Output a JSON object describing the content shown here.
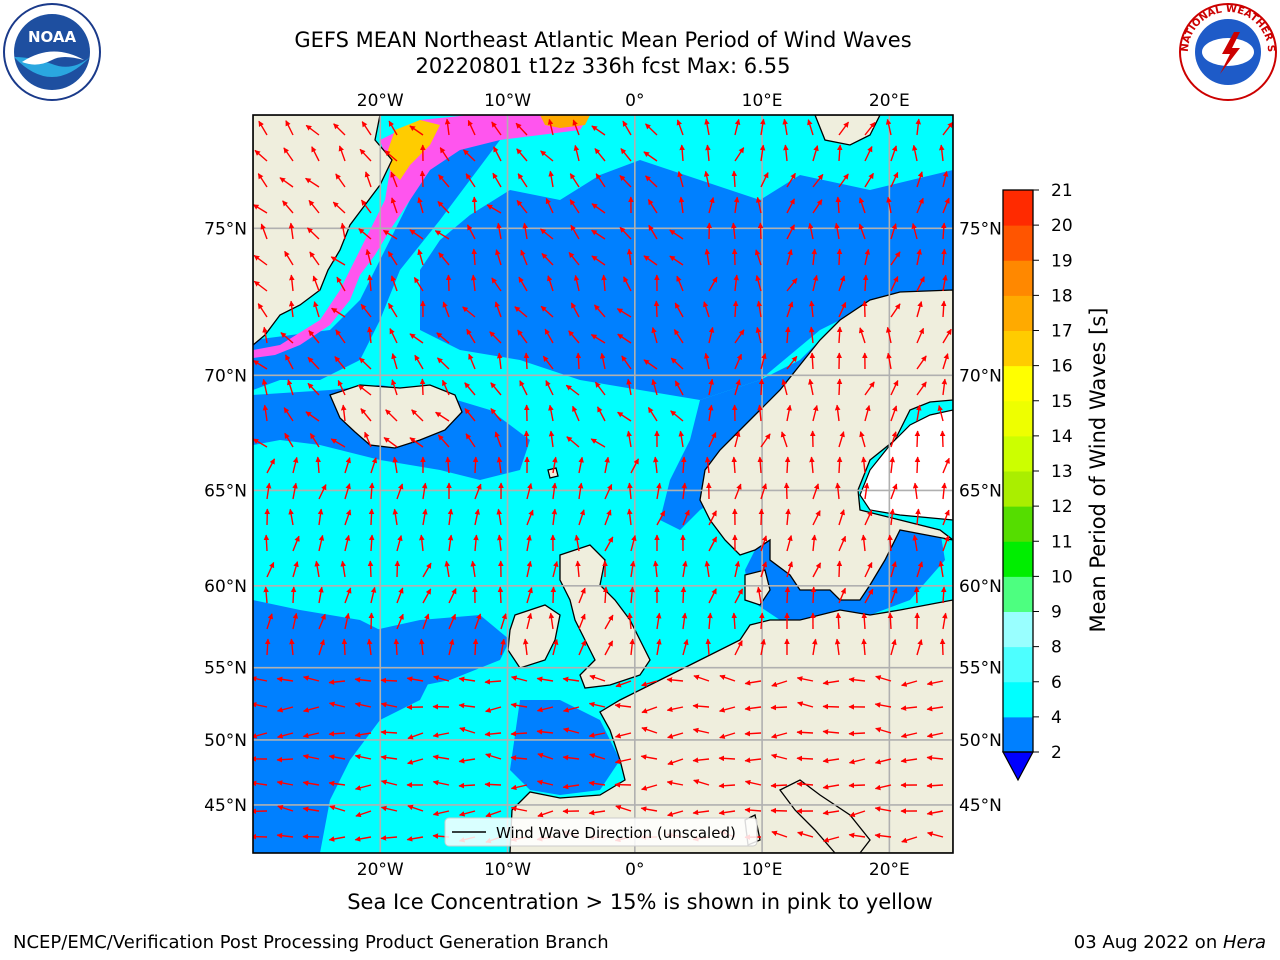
{
  "header": {
    "title_line1": "GEFS MEAN Northeast Atlantic Mean Period of Wind Waves",
    "title_line2": "20220801 t12z 336h fcst   Max: 6.55"
  },
  "logos": {
    "left": "NOAA",
    "right": "NATIONAL WEATHER SERVICE"
  },
  "map": {
    "lon_range": [
      -30,
      25
    ],
    "lat_range": [
      41,
      78
    ],
    "lon_ticks": [
      {
        "value": -20,
        "label": "20°W"
      },
      {
        "value": -10,
        "label": "10°W"
      },
      {
        "value": 0,
        "label": "0°"
      },
      {
        "value": 10,
        "label": "10°E"
      },
      {
        "value": 20,
        "label": "20°E"
      }
    ],
    "lat_ticks": [
      {
        "value": 45,
        "label": "45°N"
      },
      {
        "value": 50,
        "label": "50°N"
      },
      {
        "value": 55,
        "label": "55°N"
      },
      {
        "value": 60,
        "label": "60°N"
      },
      {
        "value": 65,
        "label": "65°N"
      },
      {
        "value": 70,
        "label": "70°N"
      },
      {
        "value": 75,
        "label": "75°N"
      }
    ],
    "grid": true,
    "legend_label": "Wind Wave Direction (unscaled)",
    "legend_placement": "bottom-center"
  },
  "colorbar": {
    "label": "Mean Period of Wind Waves [s]",
    "ticks": [
      "2",
      "4",
      "6",
      "8",
      "9",
      "10",
      "11",
      "12",
      "13",
      "14",
      "15",
      "16",
      "17",
      "18",
      "19",
      "20",
      "21"
    ],
    "colors": [
      "#0080ff",
      "#00ffff",
      "#4dffff",
      "#99ffff",
      "#4dff80",
      "#00ee00",
      "#55dd00",
      "#aaee00",
      "#ccff00",
      "#eeff00",
      "#ffff00",
      "#ffcc00",
      "#ffaa00",
      "#ff8800",
      "#ff5500",
      "#ff2a00"
    ],
    "extend_color": "#0000ff"
  },
  "colors": {
    "land": "#efeedd",
    "ocean_low": "#0080ff",
    "ocean_mid": "#00ffff",
    "ice": "#ff55ee",
    "arrow": "#ff0000",
    "grid": "#b0b0b0"
  },
  "caption": "Sea Ice Concentration > 15% is shown in pink to yellow",
  "footer": {
    "left": "NCEP/EMC/Verification Post Processing Product Generation Branch",
    "right_prefix": "03 Aug 2022 on ",
    "right_host": "Hera"
  }
}
